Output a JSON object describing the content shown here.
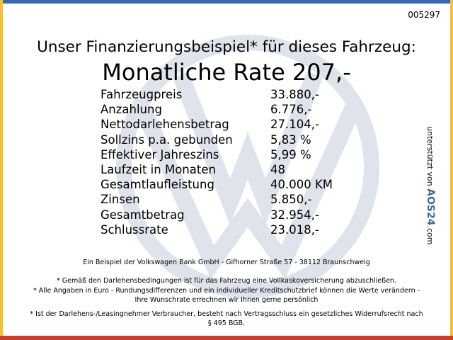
{
  "header": {
    "id": "005297",
    "title": "Unser Finanzierungsbeispiel* für dieses Fahrzeug:",
    "rate": "Monatliche Rate 207,-"
  },
  "table": {
    "rows": [
      [
        "Fahrzeugpreis",
        "33.880,-"
      ],
      [
        "Anzahlung",
        "6.776,-"
      ],
      [
        "Nettodarlehensbetrag",
        "27.104,-"
      ],
      [
        "Sollzins p.a. gebunden",
        "5,83 %"
      ],
      [
        "Effektiver Jahreszins",
        "5,99 %"
      ],
      [
        "Laufzeit in Monaten",
        "48"
      ],
      [
        "Gesamtlaufleistung",
        "40.000 KM"
      ],
      [
        "Zinsen",
        "5.850,-"
      ],
      [
        "Gesamtbetrag",
        "32.954,-"
      ],
      [
        "Schlussrate",
        "23.018,-"
      ]
    ]
  },
  "footer": {
    "lines": [
      "Ein Beispiel der Volkswagen Bank GmbH - Gifhorner Straße 57 - 38112 Braunschweig",
      "* Gemäß den Darlehensbedingungen ist für das Fahrzeug eine Vollkaskoversicherung abzuschließen.",
      "* Alle Angaben in Euro - Rundungsdifferenzen und ein individueller Kreditschutzbrief können die Werte verändern - Ihre Wunschrate errechnen wir Ihnen gerne persönlich",
      "* Ist der Darlehens-/Leasingnehmer Verbraucher, besteht nach Vertragsschluss ein gesetzliches Widerrufsrecht nach § 495 BGB."
    ]
  },
  "sidebar": {
    "text": "unterstützt von",
    "brand": "AOS24",
    "suffix": ".com"
  }
}
